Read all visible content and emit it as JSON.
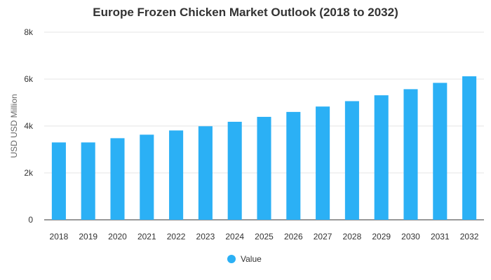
{
  "chart_data": {
    "type": "bar",
    "title": "Europe Frozen Chicken Market Outlook (2018 to 2032)",
    "xlabel": "",
    "ylabel": "USD USD Million",
    "categories": [
      "2018",
      "2019",
      "2020",
      "2021",
      "2022",
      "2023",
      "2024",
      "2025",
      "2026",
      "2027",
      "2028",
      "2029",
      "2030",
      "2031",
      "2032"
    ],
    "series": [
      {
        "name": "Value",
        "values": [
          3300,
          3300,
          3480,
          3630,
          3810,
          3990,
          4180,
          4390,
          4600,
          4830,
          5060,
          5310,
          5570,
          5840,
          6120
        ]
      }
    ],
    "ylim": [
      0,
      8000
    ],
    "yticks": [
      {
        "value": 0,
        "label": "0"
      },
      {
        "value": 2000,
        "label": "2k"
      },
      {
        "value": 4000,
        "label": "4k"
      },
      {
        "value": 6000,
        "label": "6k"
      },
      {
        "value": 8000,
        "label": "8k"
      }
    ],
    "grid": true,
    "legend_position": "bottom-center",
    "bar_color": "#2bb0f5"
  }
}
